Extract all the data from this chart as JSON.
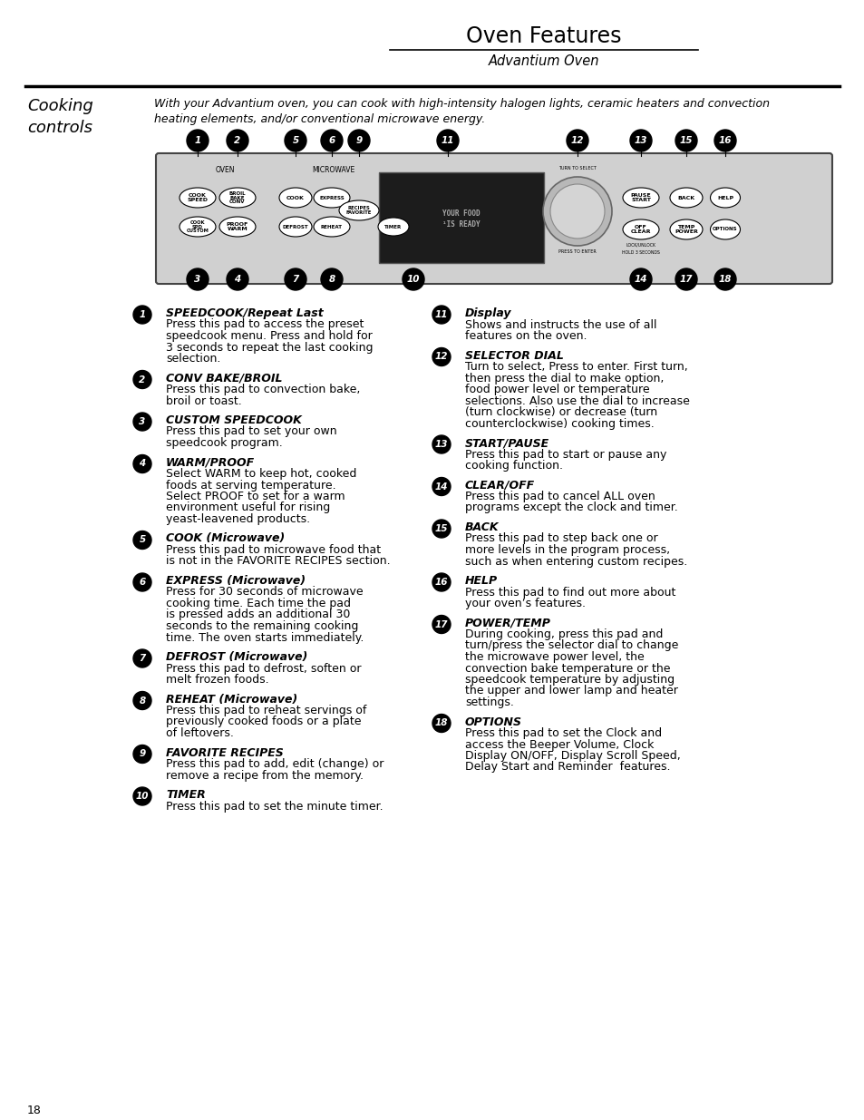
{
  "title": "Oven Features",
  "subtitle": "Advantium Oven",
  "page_bg": "#ffffff",
  "section_label": "Cooking\ncontrols",
  "intro_text": "With your Advantium oven, you can cook with high-intensity halogen lights, ceramic heaters and convection\nheating elements, and/or conventional microwave energy.",
  "items_left": [
    {
      "num": "1",
      "heading": "SPEEDCOOK/Repeat Last",
      "body": "Press this pad to access the preset\nspeedcook menu. Press and hold for\n3 seconds to repeat the last cooking\nselection."
    },
    {
      "num": "2",
      "heading": "CONV BAKE/BROIL",
      "body": "Press this pad to convection bake,\nbroil or toast."
    },
    {
      "num": "3",
      "heading": "CUSTOM SPEEDCOOK",
      "body": "Press this pad to set your own\nspeedcook program."
    },
    {
      "num": "4",
      "heading": "WARM/PROOF",
      "body": "Select WARM to keep hot, cooked\nfoods at serving temperature.\nSelect PROOF to set for a warm\nenvironment useful for rising\nyeast-leavened products."
    },
    {
      "num": "5",
      "heading": "COOK (Microwave)",
      "body": "Press this pad to microwave food that\nis not in the FAVORITE RECIPES section."
    },
    {
      "num": "6",
      "heading": "EXPRESS (Microwave)",
      "body": "Press for 30 seconds of microwave\ncooking time. Each time the pad\nis pressed adds an additional 30\nseconds to the remaining cooking\ntime. The oven starts immediately."
    },
    {
      "num": "7",
      "heading": "DEFROST (Microwave)",
      "body": "Press this pad to defrost, soften or\nmelt frozen foods."
    },
    {
      "num": "8",
      "heading": "REHEAT (Microwave)",
      "body": "Press this pad to reheat servings of\npreviously cooked foods or a plate\nof leftovers."
    },
    {
      "num": "9",
      "heading": "FAVORITE RECIPES",
      "body": "Press this pad to add, edit (change) or\nremove a recipe from the memory."
    },
    {
      "num": "10",
      "heading": "TIMER",
      "body": "Press this pad to set the minute timer."
    }
  ],
  "items_right": [
    {
      "num": "11",
      "heading": "Display",
      "body": "Shows and instructs the use of all\nfeatures on the oven."
    },
    {
      "num": "12",
      "heading": "SELECTOR DIAL",
      "body": "Turn to select, Press to enter. First turn,\nthen press the dial to make option,\nfood power level or temperature\nselections. Also use the dial to increase\n(turn clockwise) or decrease (turn\ncounterclockwise) cooking times."
    },
    {
      "num": "13",
      "heading": "START/PAUSE",
      "body": "Press this pad to start or pause any\ncooking function."
    },
    {
      "num": "14",
      "heading": "CLEAR/OFF",
      "body": "Press this pad to cancel ALL oven\nprograms except the clock and timer."
    },
    {
      "num": "15",
      "heading": "BACK",
      "body": "Press this pad to step back one or\nmore levels in the program process,\nsuch as when entering custom recipes."
    },
    {
      "num": "16",
      "heading": "HELP",
      "body": "Press this pad to find out more about\nyour oven’s features."
    },
    {
      "num": "17",
      "heading": "POWER/TEMP",
      "body": "During cooking, press this pad and\nturn/press the selector dial to change\nthe microwave power level, the\nconvection bake temperature or the\nspeedcook temperature by adjusting\nthe upper and lower lamp and heater\nsettings."
    },
    {
      "num": "18",
      "heading": "OPTIONS",
      "body": "Press this pad to set the Clock and\naccess the Beeper Volume, Clock\nDisplay ON/OFF, Display Scroll Speed,\nDelay Start and Reminder  features."
    }
  ],
  "page_number": "18",
  "clear_all_bold": "ALL",
  "options_bold_italic": [
    "Clock",
    "Beeper Volume, Clock",
    "Display ON/OFF, Display Scroll Speed,",
    "Delay Start",
    "Reminder"
  ]
}
